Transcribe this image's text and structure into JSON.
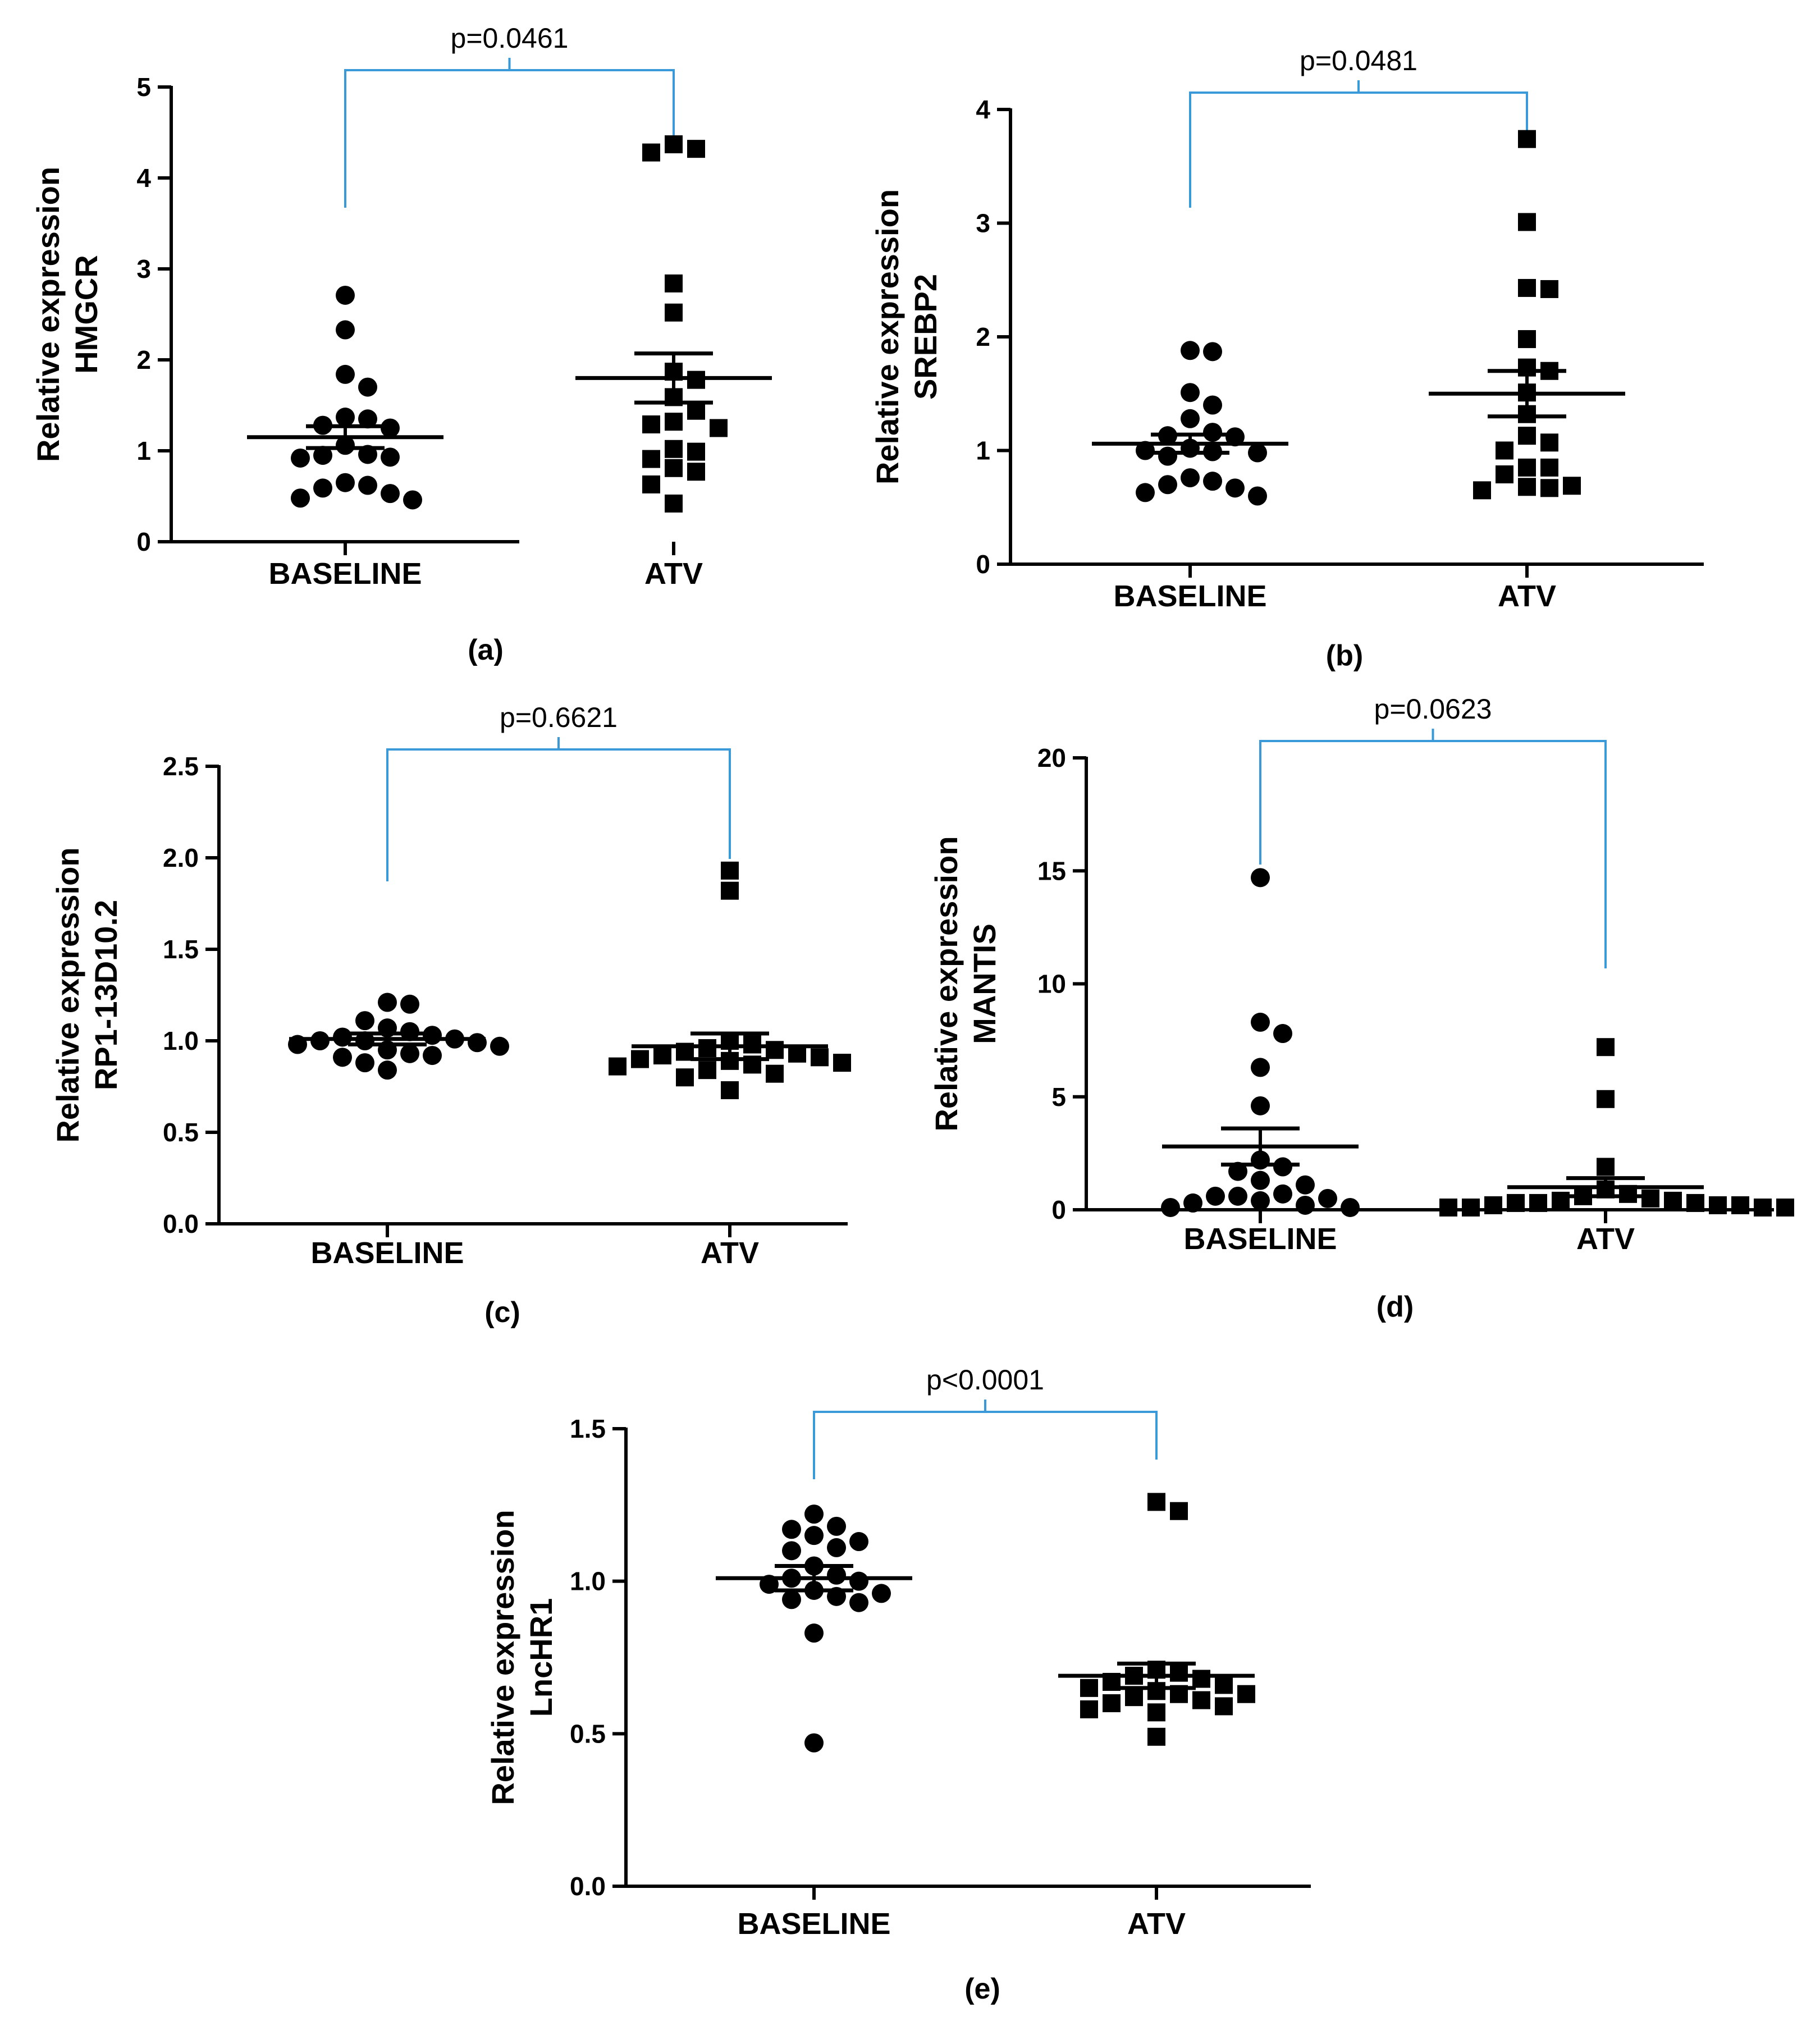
{
  "colors": {
    "bracket": "#3a9ad9",
    "marks": "#000000",
    "axis": "#000000"
  },
  "chart_data": [
    {
      "panel": "(a)",
      "type": "scatter",
      "categories": [
        "BASELINE",
        "ATV"
      ],
      "ylabel": [
        "Relative expression",
        "HMGCR"
      ],
      "ylim": [
        0,
        5
      ],
      "yticks": [
        "0",
        "1",
        "2",
        "3",
        "4",
        "5"
      ],
      "ytick_values": [
        0,
        1,
        2,
        3,
        4,
        5
      ],
      "pvalue": "p=0.0461",
      "series": [
        {
          "category": "BASELINE",
          "marker": "circle",
          "mean": 1.15,
          "sem": 0.12,
          "values": [
            2.71,
            2.33,
            1.84,
            1.7,
            1.37,
            1.35,
            1.28,
            1.25,
            1.06,
            0.96,
            0.95,
            0.93,
            0.92,
            0.65,
            0.62,
            0.59,
            0.53,
            0.48,
            0.46
          ]
        },
        {
          "category": "ATV",
          "marker": "square",
          "mean": 1.8,
          "sem": 0.27,
          "values": [
            4.37,
            4.32,
            4.28,
            2.84,
            2.52,
            1.87,
            1.78,
            1.59,
            1.44,
            1.32,
            1.29,
            1.25,
            1.02,
            0.99,
            0.91,
            0.81,
            0.77,
            0.63,
            0.42
          ]
        }
      ]
    },
    {
      "panel": "(b)",
      "type": "scatter",
      "categories": [
        "BASELINE",
        "ATV"
      ],
      "ylabel": [
        "Relative expression",
        "SREBP2"
      ],
      "ylim": [
        0,
        4
      ],
      "yticks": [
        "0",
        "1",
        "2",
        "3",
        "4"
      ],
      "ytick_values": [
        0,
        1,
        2,
        3,
        4
      ],
      "pvalue": "p=0.0481",
      "series": [
        {
          "category": "BASELINE",
          "marker": "circle",
          "mean": 1.06,
          "sem": 0.08,
          "values": [
            1.88,
            1.87,
            1.51,
            1.4,
            1.28,
            1.16,
            1.13,
            1.12,
            1.02,
            1.0,
            0.99,
            0.98,
            0.95,
            0.76,
            0.73,
            0.7,
            0.67,
            0.63,
            0.6
          ]
        },
        {
          "category": "ATV",
          "marker": "square",
          "mean": 1.5,
          "sem": 0.2,
          "values": [
            3.74,
            3.01,
            2.43,
            2.42,
            1.98,
            1.73,
            1.7,
            1.51,
            1.32,
            1.13,
            1.07,
            1.0,
            0.85,
            0.85,
            0.79,
            0.69,
            0.68,
            0.67,
            0.65
          ]
        }
      ]
    },
    {
      "panel": "(c)",
      "type": "scatter",
      "categories": [
        "BASELINE",
        "ATV"
      ],
      "ylabel": [
        "Relative expression",
        "RP1-13D10.2"
      ],
      "ylim": [
        0,
        2.5
      ],
      "yticks": [
        "0.0",
        "0.5",
        "1.0",
        "1.5",
        "2.0",
        "2.5"
      ],
      "ytick_values": [
        0,
        0.5,
        1.0,
        1.5,
        2.0,
        2.5
      ],
      "pvalue": "p=0.6621",
      "series": [
        {
          "category": "BASELINE",
          "marker": "circle",
          "mean": 1.01,
          "sem": 0.03,
          "values": [
            1.21,
            1.2,
            1.11,
            1.07,
            1.05,
            1.03,
            1.02,
            1.01,
            1.0,
            1.0,
            0.99,
            0.98,
            0.97,
            0.95,
            0.93,
            0.92,
            0.91,
            0.88,
            0.84
          ]
        },
        {
          "category": "ATV",
          "marker": "square",
          "mean": 0.97,
          "sem": 0.07,
          "values": [
            1.93,
            1.82,
            1.0,
            0.98,
            0.96,
            0.95,
            0.94,
            0.93,
            0.92,
            0.91,
            0.9,
            0.89,
            0.88,
            0.87,
            0.86,
            0.84,
            0.82,
            0.8,
            0.73
          ]
        }
      ]
    },
    {
      "panel": "(d)",
      "type": "scatter",
      "categories": [
        "BASELINE",
        "ATV"
      ],
      "ylabel": [
        "Relative expression",
        "MANTIS"
      ],
      "ylim": [
        0,
        20
      ],
      "yticks": [
        "0",
        "5",
        "10",
        "15",
        "20"
      ],
      "ytick_values": [
        0,
        5,
        10,
        15,
        20
      ],
      "pvalue": "p=0.0623",
      "series": [
        {
          "category": "BASELINE",
          "marker": "circle",
          "mean": 2.8,
          "sem": 0.8,
          "values": [
            14.7,
            8.3,
            7.8,
            6.3,
            4.6,
            2.2,
            1.9,
            1.7,
            1.3,
            1.1,
            0.7,
            0.6,
            0.6,
            0.5,
            0.4,
            0.3,
            0.2,
            0.1,
            0.1
          ]
        },
        {
          "category": "ATV",
          "marker": "square",
          "mean": 1.0,
          "sem": 0.4,
          "values": [
            7.2,
            4.9,
            1.9,
            0.9,
            0.7,
            0.6,
            0.5,
            0.4,
            0.4,
            0.3,
            0.3,
            0.3,
            0.2,
            0.2,
            0.2,
            0.1,
            0.1,
            0.1,
            0.1
          ]
        }
      ]
    },
    {
      "panel": "(e)",
      "type": "scatter",
      "categories": [
        "BASELINE",
        "ATV"
      ],
      "ylabel": [
        "Relative expression",
        "LncHR1"
      ],
      "ylim": [
        0,
        1.5
      ],
      "yticks": [
        "0.0",
        "0.5",
        "1.0",
        "1.5"
      ],
      "ytick_values": [
        0,
        0.5,
        1.0,
        1.5
      ],
      "pvalue": "p<0.0001",
      "series": [
        {
          "category": "BASELINE",
          "marker": "circle",
          "mean": 1.01,
          "sem": 0.04,
          "values": [
            1.22,
            1.18,
            1.17,
            1.15,
            1.13,
            1.11,
            1.1,
            1.05,
            1.02,
            1.01,
            1.0,
            0.99,
            0.97,
            0.96,
            0.95,
            0.94,
            0.93,
            0.83,
            0.47
          ]
        },
        {
          "category": "ATV",
          "marker": "square",
          "mean": 0.69,
          "sem": 0.04,
          "values": [
            1.26,
            1.23,
            0.71,
            0.7,
            0.69,
            0.68,
            0.67,
            0.66,
            0.65,
            0.64,
            0.63,
            0.63,
            0.62,
            0.61,
            0.6,
            0.59,
            0.58,
            0.57,
            0.49
          ]
        }
      ]
    }
  ]
}
